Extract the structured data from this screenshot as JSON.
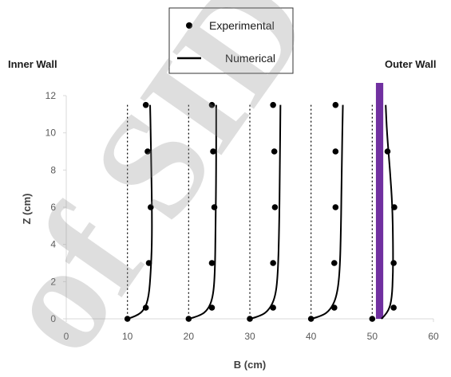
{
  "chart_data": {
    "type": "scatter",
    "xlabel": "B (cm)",
    "ylabel": "Z (cm)",
    "xlim": [
      0,
      60
    ],
    "ylim": [
      0,
      12
    ],
    "xticks": [
      "0",
      "10",
      "20",
      "30",
      "40",
      "50",
      "60"
    ],
    "yticks": [
      "0",
      "2",
      "4",
      "6",
      "8",
      "10",
      "12"
    ],
    "grid": false,
    "legend_position": "top-center",
    "annotations": {
      "inner_wall": "Inner Wall",
      "outer_wall": "Outer Wall"
    },
    "legend": {
      "experimental": "Experimental",
      "numerical": "Numerical"
    },
    "wall_band": {
      "x_from": 50.6,
      "x_to": 51.8,
      "color": "#7030A0"
    },
    "baselines": [
      10,
      20,
      30,
      40,
      50
    ],
    "series": [
      {
        "name": "Experimental",
        "kind": "markers",
        "groups": [
          [
            [
              10,
              0
            ],
            [
              13,
              0.6
            ],
            [
              13.5,
              3
            ],
            [
              13.8,
              6
            ],
            [
              13.3,
              9
            ],
            [
              13,
              11.5
            ]
          ],
          [
            [
              20,
              0
            ],
            [
              23.8,
              0.6
            ],
            [
              23.8,
              3
            ],
            [
              24.2,
              6
            ],
            [
              24,
              9
            ],
            [
              23.8,
              11.5
            ]
          ],
          [
            [
              30,
              0
            ],
            [
              33.8,
              0.6
            ],
            [
              33.8,
              3
            ],
            [
              34.1,
              6
            ],
            [
              34,
              9
            ],
            [
              33.8,
              11.5
            ]
          ],
          [
            [
              40,
              0
            ],
            [
              43.8,
              0.6
            ],
            [
              43.8,
              3
            ],
            [
              44,
              6
            ],
            [
              44,
              9
            ],
            [
              44,
              11.5
            ]
          ],
          [
            [
              50,
              0
            ],
            [
              53.5,
              0.6
            ],
            [
              53.5,
              3
            ],
            [
              53.6,
              6
            ],
            [
              52.5,
              9
            ]
          ]
        ]
      },
      {
        "name": "Numerical",
        "kind": "lines",
        "groups": [
          [
            [
              10,
              0
            ],
            [
              11.5,
              0.15
            ],
            [
              12.8,
              0.5
            ],
            [
              13.5,
              1.2
            ],
            [
              13.8,
              2.5
            ],
            [
              14,
              4
            ],
            [
              14,
              6
            ],
            [
              13.9,
              8
            ],
            [
              13.8,
              10
            ],
            [
              13.7,
              11.5
            ]
          ],
          [
            [
              20,
              0
            ],
            [
              21.8,
              0.15
            ],
            [
              23.2,
              0.5
            ],
            [
              24,
              1.2
            ],
            [
              24.3,
              2.5
            ],
            [
              24.4,
              5
            ],
            [
              24.5,
              8
            ],
            [
              24.5,
              11.5
            ]
          ],
          [
            [
              30,
              0
            ],
            [
              31.8,
              0.15
            ],
            [
              33.2,
              0.5
            ],
            [
              34.2,
              1.2
            ],
            [
              34.6,
              2.5
            ],
            [
              34.8,
              5
            ],
            [
              34.9,
              8
            ],
            [
              35,
              11.5
            ]
          ],
          [
            [
              40,
              0
            ],
            [
              41.8,
              0.15
            ],
            [
              43.2,
              0.5
            ],
            [
              44.2,
              1.2
            ],
            [
              44.7,
              2.5
            ],
            [
              44.9,
              5
            ],
            [
              45,
              8
            ],
            [
              45.2,
              11.5
            ]
          ],
          [
            [
              51.5,
              0
            ],
            [
              52.5,
              0.3
            ],
            [
              53.2,
              1
            ],
            [
              53.4,
              2.5
            ],
            [
              53.4,
              4
            ],
            [
              53.3,
              6
            ],
            [
              52.9,
              8
            ],
            [
              52.4,
              10
            ],
            [
              52.2,
              11.5
            ]
          ]
        ]
      }
    ]
  }
}
